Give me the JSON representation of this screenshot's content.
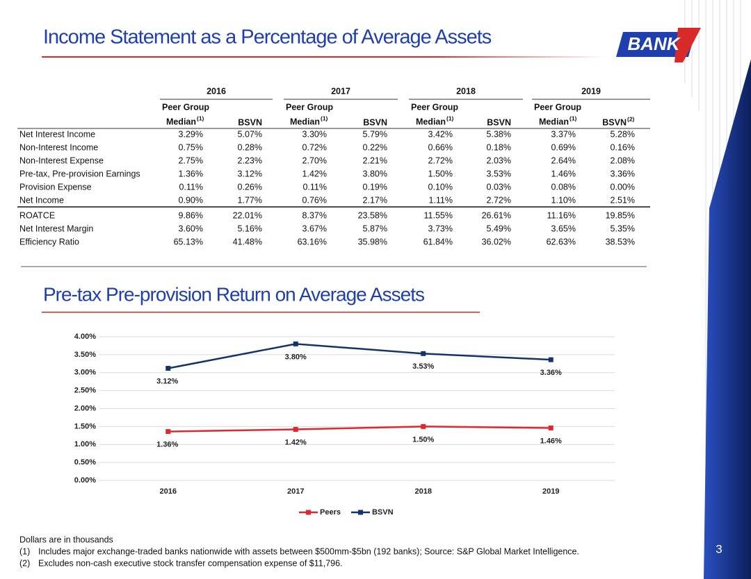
{
  "title": "Income Statement as a Percentage of Average Assets",
  "logo": "BANK",
  "table": {
    "groups": [
      {
        "year": "2016",
        "peer": "Peer Group",
        "median": "Median",
        "median_note": "(1)",
        "bsvn": "BSVN"
      },
      {
        "year": "2017",
        "peer": "Peer Group",
        "median": "Median",
        "median_note": "(1)",
        "bsvn": "BSVN"
      },
      {
        "year": "2018",
        "peer": "Peer Group",
        "median": "Median",
        "median_note": "(1)",
        "bsvn": "BSVN"
      },
      {
        "year": "2019",
        "peer": "Peer Group",
        "median": "Median",
        "median_note": "(1)",
        "bsvn": "BSVN",
        "bsvn_note": "(2)"
      }
    ],
    "sections": [
      [
        {
          "label": "Net Interest Income",
          "cells": [
            "3.29%",
            "5.07%",
            "3.30%",
            "5.79%",
            "3.42%",
            "5.38%",
            "3.37%",
            "5.28%"
          ]
        },
        {
          "label": "Non-Interest Income",
          "cells": [
            "0.75%",
            "0.28%",
            "0.72%",
            "0.22%",
            "0.66%",
            "0.18%",
            "0.69%",
            "0.16%"
          ]
        },
        {
          "label": "Non-Interest Expense",
          "cells": [
            "2.75%",
            "2.23%",
            "2.70%",
            "2.21%",
            "2.72%",
            "2.03%",
            "2.64%",
            "2.08%"
          ]
        },
        {
          "label": "Pre-tax, Pre-provision Earnings",
          "cells": [
            "1.36%",
            "3.12%",
            "1.42%",
            "3.80%",
            "1.50%",
            "3.53%",
            "1.46%",
            "3.36%"
          ]
        },
        {
          "label": "Provision Expense",
          "cells": [
            "0.11%",
            "0.26%",
            "0.11%",
            "0.19%",
            "0.10%",
            "0.03%",
            "0.08%",
            "0.00%"
          ]
        },
        {
          "label": "Net Income",
          "cells": [
            "0.90%",
            "1.77%",
            "0.76%",
            "2.17%",
            "1.11%",
            "2.72%",
            "1.10%",
            "2.51%"
          ]
        }
      ],
      [
        {
          "label": "ROATCE",
          "cells": [
            "9.86%",
            "22.01%",
            "8.37%",
            "23.58%",
            "11.55%",
            "26.61%",
            "11.16%",
            "19.85%"
          ]
        },
        {
          "label": "Net Interest Margin",
          "cells": [
            "3.60%",
            "5.16%",
            "3.67%",
            "5.87%",
            "3.73%",
            "5.49%",
            "3.65%",
            "5.35%"
          ]
        },
        {
          "label": "Efficiency Ratio",
          "cells": [
            "65.13%",
            "41.48%",
            "63.16%",
            "35.98%",
            "61.84%",
            "36.02%",
            "62.63%",
            "38.53%"
          ]
        }
      ]
    ]
  },
  "chart_data": {
    "type": "line",
    "title": "Pre-tax Pre-provision Return on Average Assets",
    "categories": [
      "2016",
      "2017",
      "2018",
      "2019"
    ],
    "series": [
      {
        "name": "Peers",
        "color": "#e0262e",
        "values": [
          1.36,
          1.42,
          1.5,
          1.46
        ],
        "value_labels": [
          "1.36%",
          "1.42%",
          "1.50%",
          "1.46%"
        ]
      },
      {
        "name": "BSVN",
        "color": "#14336b",
        "values": [
          3.12,
          3.8,
          3.53,
          3.36
        ],
        "value_labels": [
          "3.12%",
          "3.80%",
          "3.53%",
          "3.36%"
        ]
      }
    ],
    "ylim": [
      0,
      4
    ],
    "yticks": [
      {
        "value": 0,
        "label": "0.00%"
      },
      {
        "value": 0.5,
        "label": "0.50%"
      },
      {
        "value": 1,
        "label": "1.00%"
      },
      {
        "value": 1.5,
        "label": "1.50%"
      },
      {
        "value": 2,
        "label": "2.00%"
      },
      {
        "value": 2.5,
        "label": "2.50%"
      },
      {
        "value": 3,
        "label": "3.00%"
      },
      {
        "value": 3.5,
        "label": "3.50%"
      },
      {
        "value": 4,
        "label": "4.00%"
      }
    ],
    "grid": true,
    "legend": "bottom"
  },
  "notes": {
    "intro": "Dollars are in thousands",
    "footnotes": [
      {
        "num": "(1)",
        "text": "Includes major exchange-traded banks nationwide with assets between $500mm-$5bn (192 banks); Source: S&P Global Market Intelligence."
      },
      {
        "num": "(2)",
        "text": "Excludes non-cash executive stock transfer compensation expense of $11,796."
      }
    ]
  },
  "page_number": "3"
}
